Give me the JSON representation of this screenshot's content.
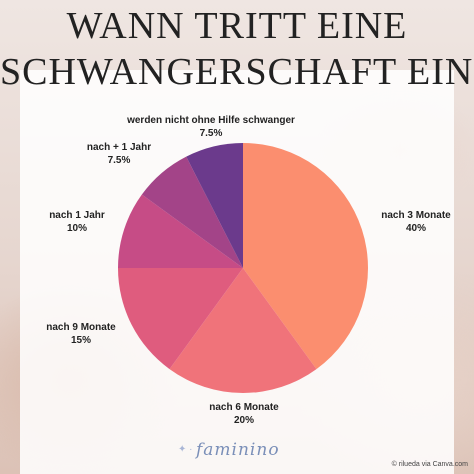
{
  "title": {
    "line1": "WANN TRITT EINE",
    "line2": "SCHWANGERSCHAFT EIN?"
  },
  "chart_data": {
    "type": "pie",
    "slices": [
      {
        "label": "nach 3 Monate",
        "value": 40,
        "display": "40%",
        "color": "#fb8e6f"
      },
      {
        "label": "nach 6 Monate",
        "value": 20,
        "display": "20%",
        "color": "#f0737a"
      },
      {
        "label": "nach 9 Monate",
        "value": 15,
        "display": "15%",
        "color": "#df5c7e"
      },
      {
        "label": "nach 1 Jahr",
        "value": 10,
        "display": "10%",
        "color": "#c64c86"
      },
      {
        "label": "nach + 1 Jahr",
        "value": 7.5,
        "display": "7.5%",
        "color": "#a34488"
      },
      {
        "label": "werden nicht ohne Hilfe schwanger",
        "value": 7.5,
        "display": "7.5%",
        "color": "#6b3a8c"
      }
    ]
  },
  "branding": {
    "logo": "faminino",
    "credit": "© rilueda via Canva.com"
  }
}
